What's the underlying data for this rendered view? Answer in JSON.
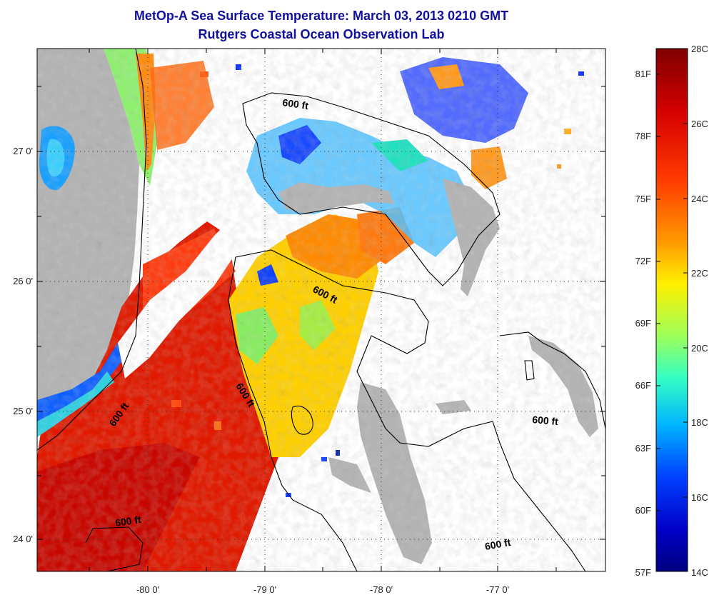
{
  "header": {
    "title": "MetOp-A Sea Surface Temperature:  March 03, 2013 0210 GMT",
    "subtitle": "Rutgers Coastal Ocean Observation Lab"
  },
  "axes": {
    "lon_ticks": [
      "-80 0'",
      "-79 0'",
      "-78 0'",
      "-77 0'"
    ],
    "lat_ticks": [
      "27 0'",
      "26 0'",
      "25 0'",
      "24 0'"
    ]
  },
  "contour_labels": [
    "600 ft",
    "600 ft",
    "600 ft",
    "600 ft",
    "600 ft",
    "600 ft"
  ],
  "colorbar": {
    "celsius": [
      "28C",
      "26C",
      "24C",
      "22C",
      "20C",
      "18C",
      "16C",
      "14C"
    ],
    "fahrenheit": [
      "81F",
      "78F",
      "75F",
      "72F",
      "69F",
      "66F",
      "63F",
      "60F",
      "57F"
    ],
    "colors": [
      "#7f0000",
      "#d40000",
      "#ff3a00",
      "#ff9a00",
      "#fff000",
      "#9dff5a",
      "#34ffc4",
      "#00b4ff",
      "#0040ff",
      "#0000c8",
      "#000080"
    ]
  },
  "colors": {
    "land": "#b3b3b3",
    "no_data": "#ffffff",
    "title": "#1010a0"
  }
}
